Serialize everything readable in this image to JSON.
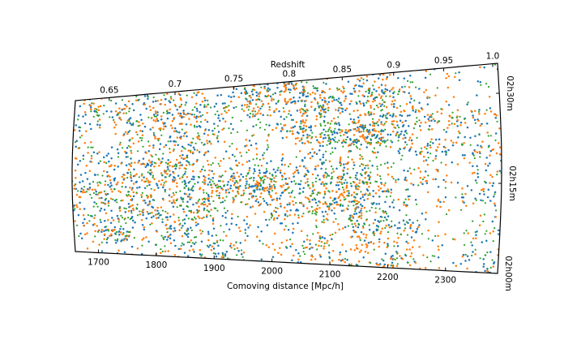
{
  "chart_data": {
    "type": "scatter",
    "title": "",
    "xlabel_bottom": "Comoving distance [Mpc/h]",
    "xlabel_top": "Redshift",
    "bottom_axis": {
      "range": [
        1660,
        2390
      ],
      "ticks": [
        1700,
        1800,
        1900,
        2000,
        2100,
        2200,
        2300
      ],
      "tick_labels": [
        "1700",
        "1800",
        "1900",
        "2000",
        "2100",
        "2200",
        "2300"
      ]
    },
    "top_axis": {
      "ticks": [
        0.65,
        0.7,
        0.75,
        0.8,
        0.85,
        0.9,
        0.95,
        1.0
      ],
      "tick_labels": [
        "0.65",
        "0.7",
        "0.75",
        "0.8",
        "0.85",
        "0.9",
        "0.95",
        "1.0"
      ]
    },
    "right_axis": {
      "range": [
        0,
        35
      ],
      "ticks": [
        0,
        15,
        30
      ],
      "tick_labels": [
        "02h00m",
        "02h15m",
        "02h30m"
      ]
    },
    "grid": false,
    "legend": "none",
    "series": [
      {
        "color": "#1f77b4",
        "approx_points": 1400
      },
      {
        "color": "#ff7f0e",
        "approx_points": 1400
      },
      {
        "color": "#2ca02c",
        "approx_points": 1000
      }
    ]
  }
}
